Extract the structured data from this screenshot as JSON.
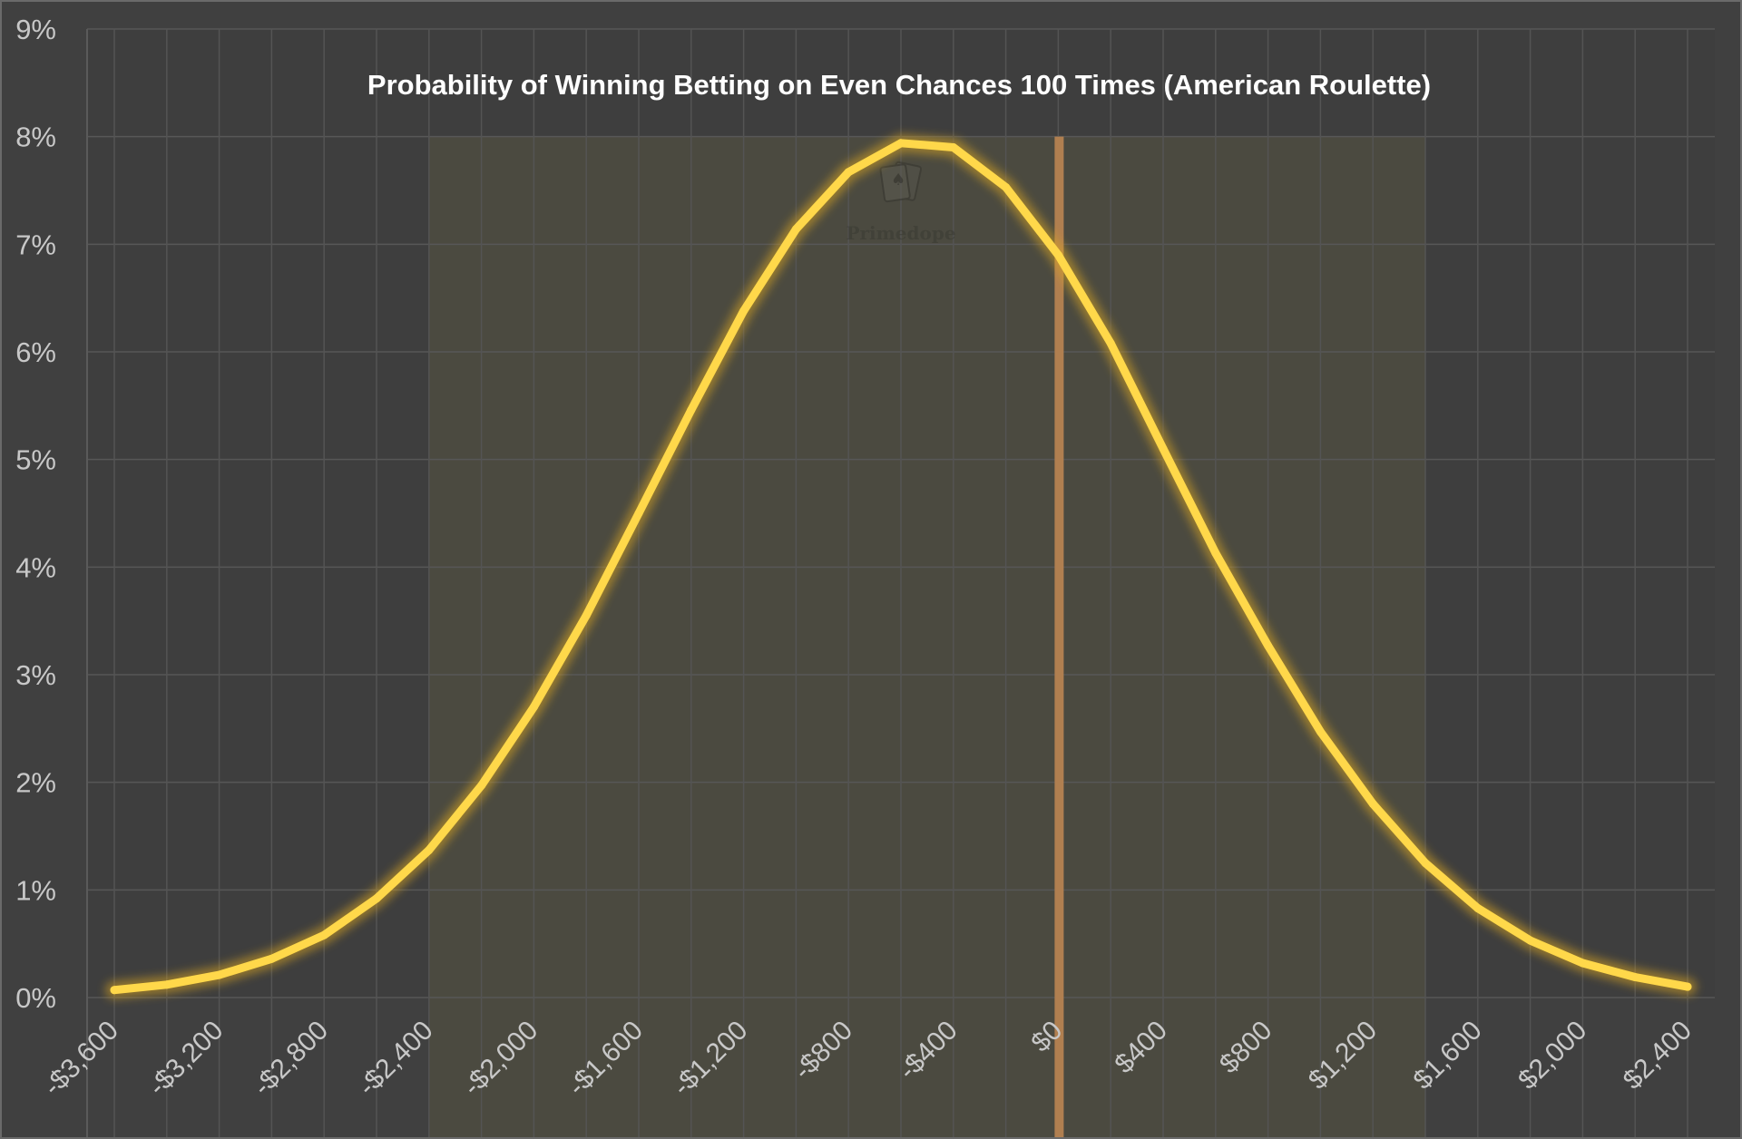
{
  "chart_data": {
    "type": "line",
    "title": "Probability of Winning Betting on Even Chances 100 Times (American Roulette)",
    "xlabel": "",
    "ylabel": "",
    "x_tick_labels": [
      "-$3,600",
      "-$3,200",
      "-$2,800",
      "-$2,400",
      "-$2,000",
      "-$1,600",
      "-$1,200",
      "-$800",
      "-$400",
      "$0",
      "$400",
      "$800",
      "$1,200",
      "$1,600",
      "$2,000",
      "$2,400"
    ],
    "y_tick_labels": [
      "0%",
      "1%",
      "2%",
      "3%",
      "4%",
      "5%",
      "6%",
      "7%",
      "8%",
      "9%"
    ],
    "ylim": [
      0,
      9
    ],
    "xlim": [
      -3600,
      2400
    ],
    "shaded_region": [
      -2400,
      1400
    ],
    "vertical_line_x": 0,
    "grid": true,
    "colors": {
      "background": "#404040",
      "plot_background": "#3e3e3e",
      "shaded_region": "#4b4a40",
      "line": "#ffd84a",
      "line_glow": "#d9a520",
      "vertical_line": "#b07f50",
      "grid": "#5a5a5a"
    },
    "series": [
      {
        "x": [
          -3600,
          -3400,
          -3200,
          -3000,
          -2800,
          -2600,
          -2400,
          -2200,
          -2000,
          -1800,
          -1600,
          -1400,
          -1200,
          -1000,
          -800,
          -600,
          -400,
          -200,
          0,
          200,
          400,
          600,
          800,
          1000,
          1200,
          1400,
          1600,
          1800,
          2000,
          2200,
          2400
        ],
        "values": [
          0.07,
          0.12,
          0.21,
          0.36,
          0.58,
          0.92,
          1.37,
          1.97,
          2.7,
          3.55,
          4.5,
          5.46,
          6.38,
          7.14,
          7.67,
          7.94,
          7.9,
          7.53,
          6.9,
          6.08,
          5.1,
          4.13,
          3.27,
          2.47,
          1.8,
          1.25,
          0.83,
          0.53,
          0.32,
          0.19,
          0.1
        ]
      }
    ]
  },
  "watermark": {
    "text": "Primedope",
    "icon": "playing-cards-icon"
  }
}
